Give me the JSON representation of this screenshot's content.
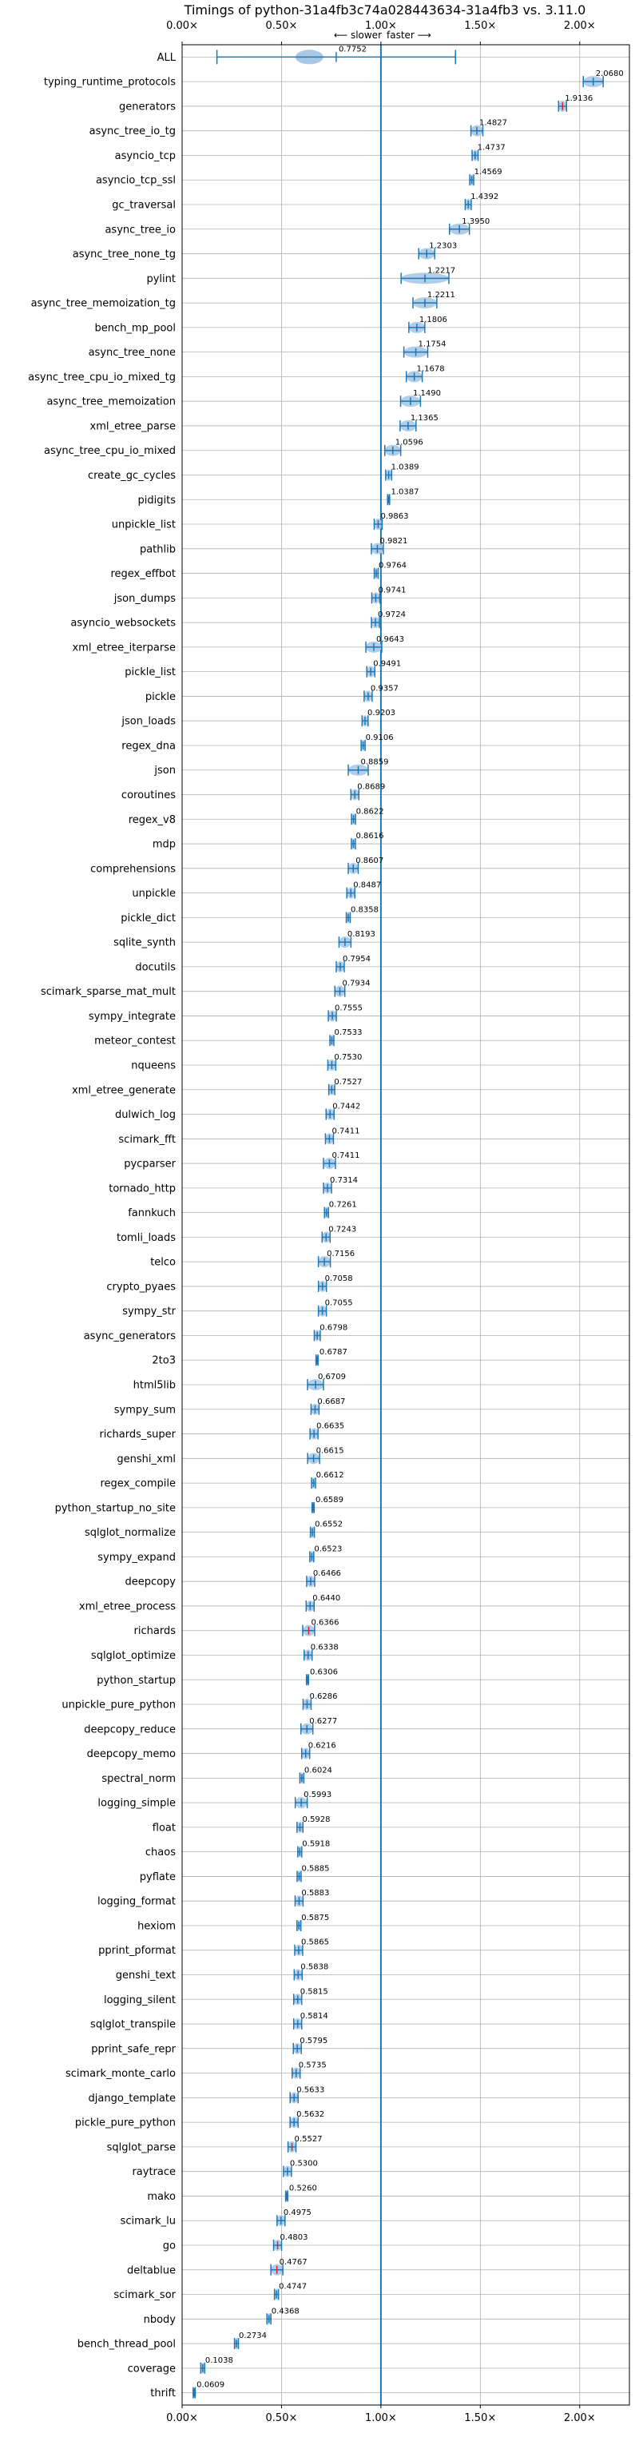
{
  "chart_data": {
    "type": "violin",
    "title": "Timings of python-31a4fb3c74a028443634-31a4fb3 vs. 3.11.0",
    "direction_left": "⟵ slower",
    "direction_right": "faster ⟶",
    "xlim": [
      0.0,
      2.25
    ],
    "xticks": [
      0.0,
      0.5,
      1.0,
      1.5,
      2.0
    ],
    "xtick_labels": [
      "0.00×",
      "0.50×",
      "1.00×",
      "1.50×",
      "2.00×"
    ],
    "reference_line": 1.0,
    "grid": true,
    "colors": {
      "violin": "#1f77b4",
      "violin_fill": "#a8c8e6",
      "ref_line": "#1f77b4",
      "outlier": "#d62728",
      "grid": "#b0b0b0"
    },
    "categories": [
      "ALL",
      "typing_runtime_protocols",
      "generators",
      "async_tree_io_tg",
      "asyncio_tcp",
      "asyncio_tcp_ssl",
      "gc_traversal",
      "async_tree_io",
      "async_tree_none_tg",
      "pylint",
      "async_tree_memoization_tg",
      "bench_mp_pool",
      "async_tree_none",
      "async_tree_cpu_io_mixed_tg",
      "async_tree_memoization",
      "xml_etree_parse",
      "async_tree_cpu_io_mixed",
      "create_gc_cycles",
      "pidigits",
      "unpickle_list",
      "pathlib",
      "regex_effbot",
      "json_dumps",
      "asyncio_websockets",
      "xml_etree_iterparse",
      "pickle_list",
      "pickle",
      "json_loads",
      "regex_dna",
      "json",
      "coroutines",
      "regex_v8",
      "mdp",
      "comprehensions",
      "unpickle",
      "pickle_dict",
      "sqlite_synth",
      "docutils",
      "scimark_sparse_mat_mult",
      "sympy_integrate",
      "meteor_contest",
      "nqueens",
      "xml_etree_generate",
      "dulwich_log",
      "scimark_fft",
      "pycparser",
      "tornado_http",
      "fannkuch",
      "tomli_loads",
      "telco",
      "crypto_pyaes",
      "sympy_str",
      "async_generators",
      "2to3",
      "html5lib",
      "sympy_sum",
      "richards_super",
      "genshi_xml",
      "regex_compile",
      "python_startup_no_site",
      "sqlglot_normalize",
      "sympy_expand",
      "deepcopy",
      "xml_etree_process",
      "richards",
      "sqlglot_optimize",
      "python_startup",
      "unpickle_pure_python",
      "deepcopy_reduce",
      "deepcopy_memo",
      "spectral_norm",
      "logging_simple",
      "float",
      "chaos",
      "pyflate",
      "logging_format",
      "hexiom",
      "pprint_pformat",
      "genshi_text",
      "logging_silent",
      "sqlglot_transpile",
      "pprint_safe_repr",
      "scimark_monte_carlo",
      "django_template",
      "pickle_pure_python",
      "sqlglot_parse",
      "raytrace",
      "mako",
      "scimark_lu",
      "go",
      "deltablue",
      "scimark_sor",
      "nbody",
      "bench_thread_pool",
      "coverage",
      "thrift"
    ],
    "values": [
      0.7752,
      2.068,
      1.9136,
      1.4827,
      1.4737,
      1.4569,
      1.4392,
      1.395,
      1.2303,
      1.2217,
      1.2211,
      1.1806,
      1.1754,
      1.1678,
      1.149,
      1.1365,
      1.0596,
      1.0389,
      1.0387,
      0.9863,
      0.9821,
      0.9764,
      0.9741,
      0.9724,
      0.9643,
      0.9491,
      0.9357,
      0.9203,
      0.9106,
      0.8859,
      0.8689,
      0.8622,
      0.8616,
      0.8607,
      0.8487,
      0.8358,
      0.8193,
      0.7954,
      0.7934,
      0.7555,
      0.7533,
      0.753,
      0.7527,
      0.7442,
      0.7411,
      0.7411,
      0.7314,
      0.7261,
      0.7243,
      0.7156,
      0.7058,
      0.7055,
      0.6798,
      0.6787,
      0.6709,
      0.6687,
      0.6635,
      0.6615,
      0.6612,
      0.6589,
      0.6552,
      0.6523,
      0.6466,
      0.644,
      0.6366,
      0.6338,
      0.6306,
      0.6286,
      0.6277,
      0.6216,
      0.6024,
      0.5993,
      0.5928,
      0.5918,
      0.5885,
      0.5883,
      0.5875,
      0.5865,
      0.5838,
      0.5815,
      0.5814,
      0.5795,
      0.5735,
      0.5633,
      0.5632,
      0.5527,
      0.53,
      0.526,
      0.4975,
      0.4803,
      0.4767,
      0.4747,
      0.4368,
      0.2734,
      0.1038,
      0.0609
    ],
    "value_labels": [
      "0.7752",
      "2.0680",
      "1.9136",
      "1.4827",
      "1.4737",
      "1.4569",
      "1.4392",
      "1.3950",
      "1.2303",
      "1.2217",
      "1.2211",
      "1.1806",
      "1.1754",
      "1.1678",
      "1.1490",
      "1.1365",
      "1.0596",
      "1.0389",
      "1.0387",
      "0.9863",
      "0.9821",
      "0.9764",
      "0.9741",
      "0.9724",
      "0.9643",
      "0.9491",
      "0.9357",
      "0.9203",
      "0.9106",
      "0.8859",
      "0.8689",
      "0.8622",
      "0.8616",
      "0.8607",
      "0.8487",
      "0.8358",
      "0.8193",
      "0.7954",
      "0.7934",
      "0.7555",
      "0.7533",
      "0.7530",
      "0.7527",
      "0.7442",
      "0.7411",
      "0.7411",
      "0.7314",
      "0.7261",
      "0.7243",
      "0.7156",
      "0.7058",
      "0.7055",
      "0.6798",
      "0.6787",
      "0.6709",
      "0.6687",
      "0.6635",
      "0.6615",
      "0.6612",
      "0.6589",
      "0.6552",
      "0.6523",
      "0.6466",
      "0.6440",
      "0.6366",
      "0.6338",
      "0.6306",
      "0.6286",
      "0.6277",
      "0.6216",
      "0.6024",
      "0.5993",
      "0.5928",
      "0.5918",
      "0.5885",
      "0.5883",
      "0.5875",
      "0.5865",
      "0.5838",
      "0.5815",
      "0.5814",
      "0.5795",
      "0.5735",
      "0.5633",
      "0.5632",
      "0.5527",
      "0.5300",
      "0.5260",
      "0.4975",
      "0.4803",
      "0.4767",
      "0.4747",
      "0.4368",
      "0.2734",
      "0.1038",
      "0.0609"
    ],
    "spreads": [
      0.6,
      0.05,
      0.02,
      0.03,
      0.015,
      0.01,
      0.015,
      0.05,
      0.04,
      0.12,
      0.06,
      0.04,
      0.06,
      0.04,
      0.05,
      0.04,
      0.04,
      0.015,
      0.005,
      0.02,
      0.03,
      0.01,
      0.02,
      0.02,
      0.04,
      0.02,
      0.02,
      0.015,
      0.01,
      0.05,
      0.02,
      0.01,
      0.01,
      0.025,
      0.02,
      0.01,
      0.03,
      0.02,
      0.025,
      0.02,
      0.01,
      0.02,
      0.015,
      0.02,
      0.02,
      0.03,
      0.02,
      0.01,
      0.02,
      0.03,
      0.02,
      0.02,
      0.015,
      0.005,
      0.04,
      0.02,
      0.02,
      0.03,
      0.01,
      0.005,
      0.01,
      0.01,
      0.02,
      0.02,
      0.03,
      0.02,
      0.005,
      0.02,
      0.03,
      0.02,
      0.01,
      0.03,
      0.015,
      0.01,
      0.01,
      0.02,
      0.01,
      0.02,
      0.02,
      0.02,
      0.02,
      0.02,
      0.02,
      0.02,
      0.02,
      0.02,
      0.02,
      0.005,
      0.02,
      0.02,
      0.03,
      0.01,
      0.01,
      0.01,
      0.01,
      0.005
    ],
    "outliers": [
      2,
      64,
      85,
      89,
      90
    ]
  }
}
